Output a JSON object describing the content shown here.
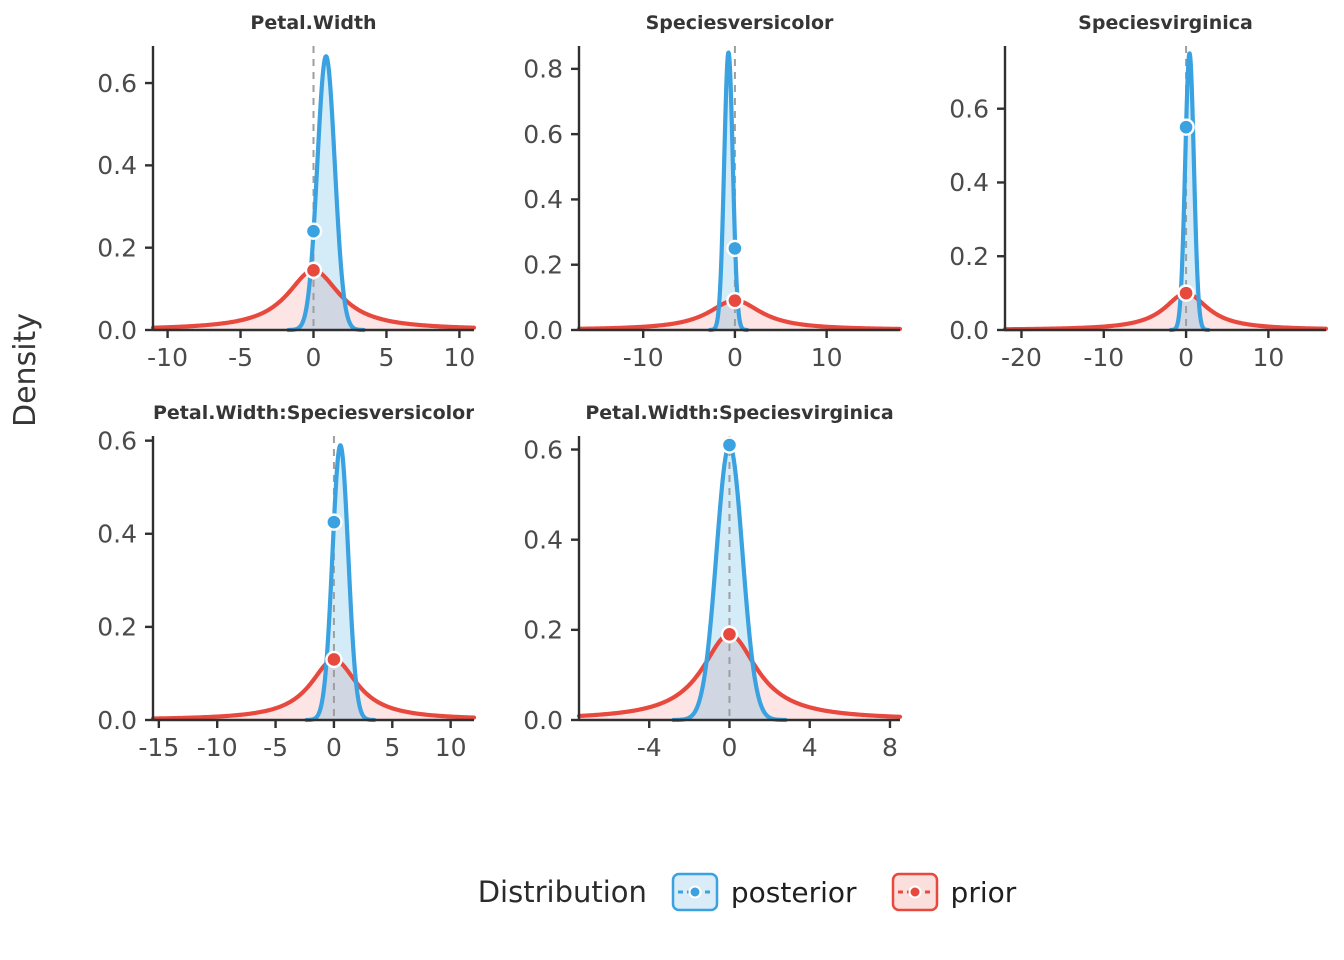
{
  "figure": {
    "ylab": "Density",
    "legend": {
      "title": "Distribution",
      "entries": [
        {
          "label": "posterior",
          "color": "#3aa2e0",
          "key_fill": "#d9ecf8"
        },
        {
          "label": "prior",
          "color": "#e8493e",
          "key_fill": "#fbdfdc"
        }
      ]
    },
    "series_colors": {
      "posterior": {
        "line": "#3aa2e0",
        "fill": "#3aa2e0",
        "fill_opacity": 0.22
      },
      "prior": {
        "line": "#e8493e",
        "fill": "#e8493e",
        "fill_opacity": 0.14
      }
    },
    "vline_color": "#9e9e9e",
    "axis_color": "#303030",
    "tick_label_color": "#4b4b4b",
    "title_color": "#363636"
  },
  "chart_data": [
    {
      "type": "area",
      "title": "Petal.Width",
      "row": 1,
      "col": 1,
      "xlim": [
        -11,
        11
      ],
      "xticks": [
        -10,
        -5,
        0,
        5,
        10
      ],
      "ylim": [
        0,
        0.69
      ],
      "yticks": [
        0,
        0.2,
        0.4,
        0.6
      ],
      "vline_x": 0,
      "series": [
        {
          "name": "posterior",
          "dist": "normal",
          "mean": 0.86,
          "sd": 0.6,
          "peak": 0.665,
          "dot": {
            "x": 0,
            "y": 0.24
          }
        },
        {
          "name": "prior",
          "dist": "cauchy",
          "mean": 0,
          "scale": 2.2,
          "peak": 0.145,
          "dot": {
            "x": 0,
            "y": 0.145
          }
        }
      ]
    },
    {
      "type": "area",
      "title": "Speciesversicolor",
      "row": 1,
      "col": 2,
      "xlim": [
        -17,
        18
      ],
      "xticks": [
        -10,
        0,
        10
      ],
      "ylim": [
        0,
        0.87
      ],
      "yticks": [
        0,
        0.2,
        0.4,
        0.6,
        0.8
      ],
      "vline_x": 0,
      "series": [
        {
          "name": "posterior",
          "dist": "normal",
          "mean": -0.7,
          "sd": 0.47,
          "peak": 0.85,
          "dot": {
            "x": 0,
            "y": 0.25
          }
        },
        {
          "name": "prior",
          "dist": "cauchy",
          "mean": 0,
          "scale": 3.5,
          "peak": 0.091,
          "dot": {
            "x": 0,
            "y": 0.09
          }
        }
      ]
    },
    {
      "type": "area",
      "title": "Speciesvirginica",
      "row": 1,
      "col": 3,
      "xlim": [
        -22,
        17
      ],
      "xticks": [
        -20,
        -10,
        0,
        10
      ],
      "ylim": [
        0,
        0.77
      ],
      "yticks": [
        0,
        0.2,
        0.4,
        0.6
      ],
      "vline_x": 0,
      "series": [
        {
          "name": "posterior",
          "dist": "normal",
          "mean": 0.42,
          "sd": 0.53,
          "peak": 0.75,
          "dot": {
            "x": 0,
            "y": 0.55
          }
        },
        {
          "name": "prior",
          "dist": "cauchy",
          "mean": 0,
          "scale": 3.2,
          "peak": 0.1,
          "dot": {
            "x": 0,
            "y": 0.1
          }
        }
      ]
    },
    {
      "type": "area",
      "title": "Petal.Width:Speciesversicolor",
      "row": 2,
      "col": 1,
      "xlim": [
        -15.5,
        12
      ],
      "xticks": [
        -15,
        -10,
        -5,
        0,
        5,
        10
      ],
      "ylim": [
        0,
        0.61
      ],
      "yticks": [
        0,
        0.2,
        0.4,
        0.6
      ],
      "vline_x": 0,
      "series": [
        {
          "name": "posterior",
          "dist": "normal",
          "mean": 0.55,
          "sd": 0.675,
          "peak": 0.59,
          "dot": {
            "x": 0,
            "y": 0.425
          }
        },
        {
          "name": "prior",
          "dist": "cauchy",
          "mean": 0,
          "scale": 2.45,
          "peak": 0.13,
          "dot": {
            "x": 0,
            "y": 0.13
          }
        }
      ]
    },
    {
      "type": "area",
      "title": "Petal.Width:Speciesvirginica",
      "row": 2,
      "col": 2,
      "xlim": [
        -7.5,
        8.5
      ],
      "xticks": [
        -4,
        0,
        4,
        8
      ],
      "ylim": [
        0,
        0.63
      ],
      "yticks": [
        0,
        0.2,
        0.4,
        0.6
      ],
      "vline_x": 0,
      "series": [
        {
          "name": "posterior",
          "dist": "normal",
          "mean": 0,
          "sd": 0.65,
          "peak": 0.61,
          "dot": {
            "x": 0,
            "y": 0.61
          }
        },
        {
          "name": "prior",
          "dist": "cauchy",
          "mean": 0,
          "scale": 1.67,
          "peak": 0.19,
          "dot": {
            "x": 0,
            "y": 0.19
          }
        }
      ]
    }
  ]
}
